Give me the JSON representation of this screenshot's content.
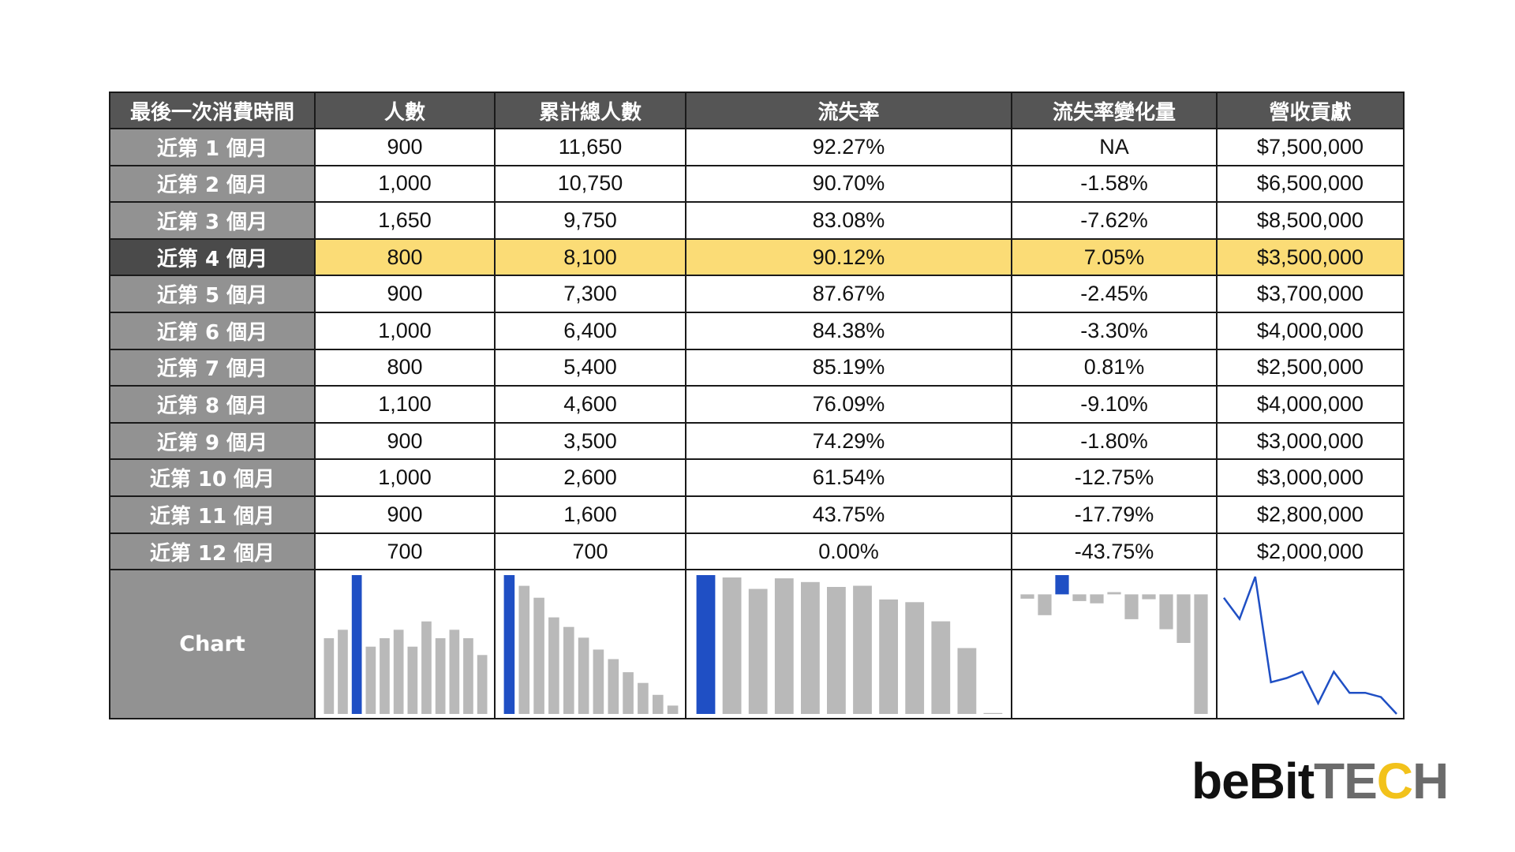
{
  "table": {
    "headers": [
      "最後一次消費時間",
      "人數",
      "累計總人數",
      "流失率",
      "流失率變化量",
      "營收貢獻"
    ],
    "rows": [
      {
        "label": "近第 1 個月",
        "people": "900",
        "cumulative": "11,650",
        "churn": "92.27%",
        "change": "NA",
        "revenue": "$7,500,000"
      },
      {
        "label": "近第 2 個月",
        "people": "1,000",
        "cumulative": "10,750",
        "churn": "90.70%",
        "change": "-1.58%",
        "revenue": "$6,500,000"
      },
      {
        "label": "近第 3 個月",
        "people": "1,650",
        "cumulative": "9,750",
        "churn": "83.08%",
        "change": "-7.62%",
        "revenue": "$8,500,000"
      },
      {
        "label": "近第 4 個月",
        "people": "800",
        "cumulative": "8,100",
        "churn": "90.12%",
        "change": "7.05%",
        "revenue": "$3,500,000"
      },
      {
        "label": "近第 5 個月",
        "people": "900",
        "cumulative": "7,300",
        "churn": "87.67%",
        "change": "-2.45%",
        "revenue": "$3,700,000"
      },
      {
        "label": "近第 6 個月",
        "people": "1,000",
        "cumulative": "6,400",
        "churn": "84.38%",
        "change": "-3.30%",
        "revenue": "$4,000,000"
      },
      {
        "label": "近第 7 個月",
        "people": "800",
        "cumulative": "5,400",
        "churn": "85.19%",
        "change": "0.81%",
        "revenue": "$2,500,000"
      },
      {
        "label": "近第 8 個月",
        "people": "1,100",
        "cumulative": "4,600",
        "churn": "76.09%",
        "change": "-9.10%",
        "revenue": "$4,000,000"
      },
      {
        "label": "近第 9 個月",
        "people": "900",
        "cumulative": "3,500",
        "churn": "74.29%",
        "change": "-1.80%",
        "revenue": "$3,000,000"
      },
      {
        "label": "近第 10 個月",
        "people": "1,000",
        "cumulative": "2,600",
        "churn": "61.54%",
        "change": "-12.75%",
        "revenue": "$3,000,000"
      },
      {
        "label": "近第 11 個月",
        "people": "900",
        "cumulative": "1,600",
        "churn": "43.75%",
        "change": "-17.79%",
        "revenue": "$2,800,000"
      },
      {
        "label": "近第 12 個月",
        "people": "700",
        "cumulative": "700",
        "churn": "0.00%",
        "change": "-43.75%",
        "revenue": "$2,000,000"
      }
    ],
    "chart_row_label": "Chart",
    "highlight_row": 3
  },
  "logo": {
    "part1": "beBit",
    "part2a": "TE",
    "part2b": "C",
    "part2c": "H"
  },
  "colors": {
    "highlight_bar": "#1f4fc4",
    "bar": "#b9b9b9",
    "line": "#1f4fc4",
    "row_highlight": "#fbdc76"
  },
  "chart_data": [
    {
      "type": "bar",
      "name_ref": "人數",
      "categories": [
        "1",
        "2",
        "3",
        "4",
        "5",
        "6",
        "7",
        "8",
        "9",
        "10",
        "11",
        "12"
      ],
      "values": [
        900,
        1000,
        1650,
        800,
        900,
        1000,
        800,
        1100,
        900,
        1000,
        900,
        700
      ],
      "highlight_index": 2
    },
    {
      "type": "bar",
      "name_ref": "累計總人數",
      "categories": [
        "1",
        "2",
        "3",
        "4",
        "5",
        "6",
        "7",
        "8",
        "9",
        "10",
        "11",
        "12"
      ],
      "values": [
        11650,
        10750,
        9750,
        8100,
        7300,
        6400,
        5400,
        4600,
        3500,
        2600,
        1600,
        700
      ],
      "highlight_index": 0
    },
    {
      "type": "bar",
      "name_ref": "流失率",
      "categories": [
        "1",
        "2",
        "3",
        "4",
        "5",
        "6",
        "7",
        "8",
        "9",
        "10",
        "11",
        "12"
      ],
      "values": [
        92.27,
        90.7,
        83.08,
        90.12,
        87.67,
        84.38,
        85.19,
        76.09,
        74.29,
        61.54,
        43.75,
        0.0
      ],
      "highlight_index": 0
    },
    {
      "type": "bar",
      "name_ref": "流失率變化量",
      "categories": [
        "2",
        "3",
        "4",
        "5",
        "6",
        "7",
        "8",
        "9",
        "10",
        "11",
        "12"
      ],
      "values": [
        -1.58,
        -7.62,
        7.05,
        -2.45,
        -3.3,
        0.81,
        -9.1,
        -1.8,
        -12.75,
        -17.79,
        -43.75
      ],
      "highlight_index": 2
    },
    {
      "type": "line",
      "name_ref": "營收貢獻",
      "categories": [
        "1",
        "2",
        "3",
        "4",
        "5",
        "6",
        "7",
        "8",
        "9",
        "10",
        "11",
        "12"
      ],
      "values": [
        7500000,
        6500000,
        8500000,
        3500000,
        3700000,
        4000000,
        2500000,
        4000000,
        3000000,
        3000000,
        2800000,
        2000000
      ]
    }
  ]
}
